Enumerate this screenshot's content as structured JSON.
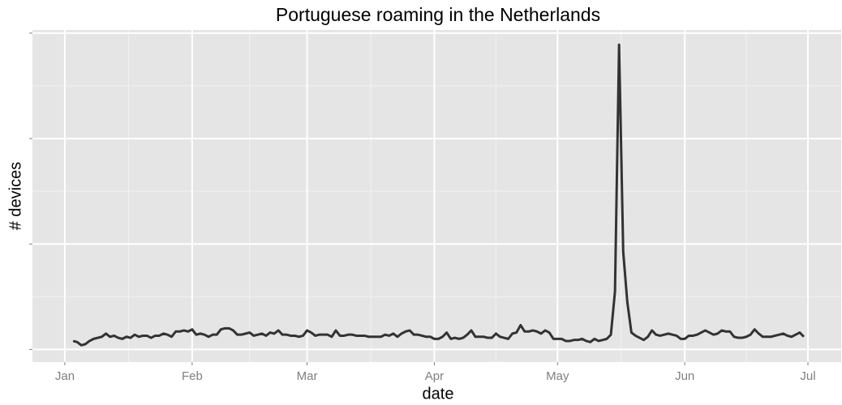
{
  "chart_data": {
    "type": "line",
    "title": "Portuguese roaming in the Netherlands",
    "x_label": "date",
    "y_label": "# devices",
    "x": [
      2,
      3,
      4,
      5,
      6,
      7,
      8,
      9,
      10,
      11,
      12,
      13,
      14,
      15,
      16,
      17,
      18,
      19,
      20,
      21,
      22,
      23,
      24,
      25,
      26,
      27,
      28,
      29,
      30,
      31,
      32,
      33,
      34,
      35,
      36,
      37,
      38,
      39,
      40,
      41,
      42,
      43,
      44,
      45,
      46,
      47,
      48,
      49,
      50,
      51,
      52,
      53,
      54,
      55,
      56,
      57,
      58,
      59,
      60,
      61,
      62,
      63,
      64,
      65,
      66,
      67,
      68,
      69,
      70,
      71,
      72,
      73,
      74,
      75,
      76,
      77,
      78,
      79,
      80,
      81,
      82,
      83,
      84,
      85,
      86,
      87,
      88,
      89,
      90,
      91,
      92,
      93,
      94,
      95,
      96,
      97,
      98,
      99,
      100,
      101,
      102,
      103,
      104,
      105,
      106,
      107,
      108,
      109,
      110,
      111,
      112,
      113,
      114,
      115,
      116,
      117,
      118,
      119,
      120,
      121,
      122,
      123,
      124,
      125,
      126,
      127,
      128,
      129,
      130,
      131,
      132,
      133,
      134,
      135,
      136,
      137,
      138,
      139,
      140,
      141,
      142,
      143,
      144,
      145,
      146,
      147,
      148,
      149,
      150,
      151,
      152,
      153,
      154,
      155,
      156,
      157,
      158,
      159,
      160,
      161,
      162,
      163,
      164,
      165,
      166,
      167,
      168,
      169,
      170,
      171,
      172,
      173,
      174,
      175,
      176,
      177,
      178,
      179,
      180
    ],
    "values": [
      0.08,
      0.07,
      0.04,
      0.05,
      0.08,
      0.1,
      0.11,
      0.12,
      0.15,
      0.12,
      0.13,
      0.11,
      0.1,
      0.12,
      0.11,
      0.14,
      0.12,
      0.13,
      0.13,
      0.11,
      0.13,
      0.13,
      0.15,
      0.14,
      0.12,
      0.17,
      0.17,
      0.18,
      0.17,
      0.19,
      0.14,
      0.15,
      0.14,
      0.12,
      0.14,
      0.14,
      0.19,
      0.2,
      0.2,
      0.18,
      0.14,
      0.14,
      0.15,
      0.16,
      0.13,
      0.14,
      0.15,
      0.13,
      0.16,
      0.15,
      0.18,
      0.14,
      0.14,
      0.13,
      0.13,
      0.12,
      0.13,
      0.18,
      0.16,
      0.13,
      0.14,
      0.14,
      0.14,
      0.12,
      0.18,
      0.13,
      0.13,
      0.14,
      0.14,
      0.13,
      0.13,
      0.13,
      0.12,
      0.12,
      0.12,
      0.12,
      0.14,
      0.13,
      0.15,
      0.12,
      0.15,
      0.17,
      0.18,
      0.14,
      0.14,
      0.13,
      0.12,
      0.12,
      0.1,
      0.1,
      0.12,
      0.16,
      0.1,
      0.11,
      0.1,
      0.11,
      0.14,
      0.18,
      0.12,
      0.12,
      0.12,
      0.11,
      0.11,
      0.15,
      0.12,
      0.11,
      0.1,
      0.15,
      0.16,
      0.23,
      0.17,
      0.17,
      0.18,
      0.17,
      0.15,
      0.18,
      0.16,
      0.1,
      0.1,
      0.1,
      0.08,
      0.08,
      0.09,
      0.09,
      0.1,
      0.08,
      0.07,
      0.1,
      0.08,
      0.09,
      0.1,
      0.14,
      0.55,
      2.89,
      0.93,
      0.45,
      0.16,
      0.13,
      0.11,
      0.09,
      0.12,
      0.18,
      0.14,
      0.13,
      0.14,
      0.15,
      0.14,
      0.13,
      0.1,
      0.1,
      0.13,
      0.13,
      0.14,
      0.16,
      0.18,
      0.16,
      0.14,
      0.15,
      0.18,
      0.17,
      0.17,
      0.12,
      0.11,
      0.11,
      0.12,
      0.14,
      0.19,
      0.15,
      0.12,
      0.12,
      0.12,
      0.13,
      0.14,
      0.15,
      0.13,
      0.12,
      0.14,
      0.16,
      0.12
    ],
    "color": "#333333",
    "xlim": [
      -7.9,
      189.1
    ],
    "xticks": [
      {
        "value": 0,
        "label": "Jan"
      },
      {
        "value": 31,
        "label": "Feb"
      },
      {
        "value": 59,
        "label": "Mar"
      },
      {
        "value": 90,
        "label": "Apr"
      },
      {
        "value": 120,
        "label": "May"
      },
      {
        "value": 151,
        "label": "Jun"
      },
      {
        "value": 181,
        "label": "Jul"
      }
    ],
    "ylim": [
      -0.12,
      3.03
    ],
    "yticks": [
      0,
      1,
      2,
      3
    ],
    "ytick_labels": false,
    "grid": true
  }
}
